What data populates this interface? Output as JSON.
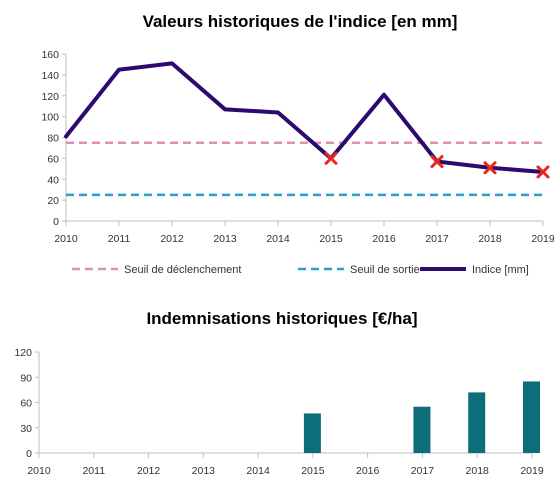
{
  "chart_data": [
    {
      "type": "line",
      "title": "Valeurs historiques de l'indice [en mm]",
      "x": [
        "2010",
        "2011",
        "2012",
        "2013",
        "2014",
        "2015",
        "2016",
        "2017",
        "2018",
        "2019"
      ],
      "ylim": [
        0,
        160
      ],
      "yticks": [
        "0",
        "20",
        "40",
        "60",
        "80",
        "100",
        "120",
        "140",
        "160"
      ],
      "grid": false,
      "legend_position": "bottom",
      "series": [
        {
          "name": "Seuil de déclenchement",
          "style": "dashed",
          "color": "#e090b0",
          "values": [
            75,
            75,
            75,
            75,
            75,
            75,
            75,
            75,
            75,
            75
          ]
        },
        {
          "name": "Seuil de sortie",
          "style": "dashed",
          "color": "#2a9fc9",
          "values": [
            25,
            25,
            25,
            25,
            25,
            25,
            25,
            25,
            25,
            25
          ]
        },
        {
          "name": "Indice [mm]",
          "style": "solid",
          "color": "#2d0a6e",
          "values": [
            81,
            145,
            151,
            107,
            104,
            60,
            121,
            57,
            51,
            47
          ]
        }
      ],
      "annotations": {
        "marker": "x-icon",
        "color": "#e8281e",
        "points": [
          {
            "x": "2015",
            "y": 60
          },
          {
            "x": "2017",
            "y": 57
          },
          {
            "x": "2018",
            "y": 51
          },
          {
            "x": "2019",
            "y": 47
          }
        ]
      }
    },
    {
      "type": "bar",
      "title": "Indemnisations historiques [€/ha]",
      "categories": [
        "2010",
        "2011",
        "2012",
        "2013",
        "2014",
        "2015",
        "2016",
        "2017",
        "2018",
        "2019"
      ],
      "values": [
        0,
        0,
        0,
        0,
        0,
        47,
        0,
        55,
        72,
        85
      ],
      "ylim": [
        0,
        120
      ],
      "yticks": [
        "0",
        "30",
        "60",
        "90",
        "120"
      ],
      "color": "#0b6e7a",
      "grid": false
    }
  ]
}
